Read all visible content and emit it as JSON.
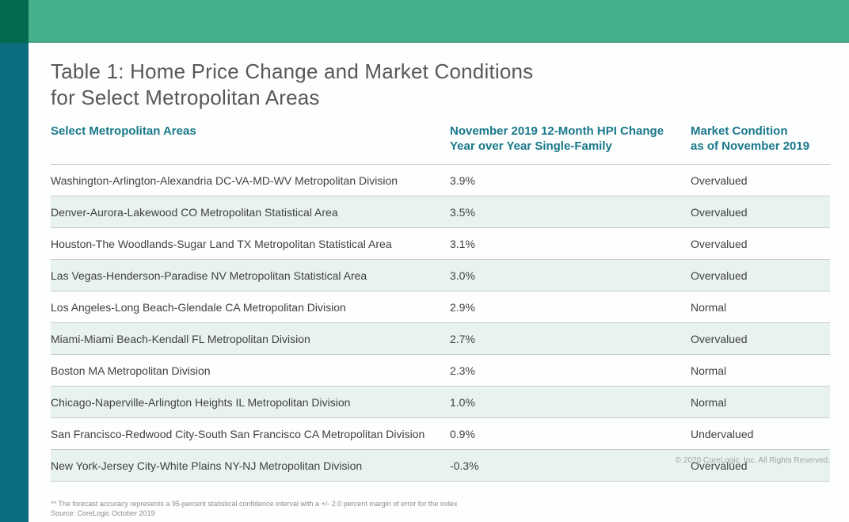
{
  "title": {
    "line1": "Table 1: Home Price Change and Market Conditions",
    "line2": "for Select Metropolitan Areas"
  },
  "table": {
    "columns": {
      "area": "Select Metropolitan Areas",
      "hpi_line1": "November 2019 12-Month HPI Change",
      "hpi_line2": "Year over Year Single-Family",
      "condition_line1": "Market Condition",
      "condition_line2": "as of November 2019"
    },
    "rows": [
      {
        "area": "Washington-Arlington-Alexandria DC-VA-MD-WV Metropolitan Division",
        "hpi_change": "3.9%",
        "condition": "Overvalued"
      },
      {
        "area": "Denver-Aurora-Lakewood CO Metropolitan Statistical Area",
        "hpi_change": "3.5%",
        "condition": "Overvalued"
      },
      {
        "area": "Houston-The Woodlands-Sugar Land TX Metropolitan Statistical Area",
        "hpi_change": "3.1%",
        "condition": "Overvalued"
      },
      {
        "area": "Las Vegas-Henderson-Paradise NV Metropolitan Statistical Area",
        "hpi_change": "3.0%",
        "condition": "Overvalued"
      },
      {
        "area": "Los Angeles-Long Beach-Glendale CA Metropolitan Division",
        "hpi_change": "2.9%",
        "condition": "Normal"
      },
      {
        "area": "Miami-Miami Beach-Kendall FL Metropolitan Division",
        "hpi_change": "2.7%",
        "condition": "Overvalued"
      },
      {
        "area": "Boston MA Metropolitan Division",
        "hpi_change": "2.3%",
        "condition": "Normal"
      },
      {
        "area": "Chicago-Naperville-Arlington Heights IL Metropolitan Division",
        "hpi_change": "1.0%",
        "condition": "Normal"
      },
      {
        "area": "San Francisco-Redwood City-South San Francisco CA Metropolitan Division",
        "hpi_change": "0.9%",
        "condition": "Undervalued"
      },
      {
        "area": "New York-Jersey City-White Plains NY-NJ Metropolitan Division",
        "hpi_change": "-0.3%",
        "condition": "Overvalued"
      }
    ]
  },
  "footer": {
    "footnote": "** The forecast accuracy represents a 95-percent statistical confidence interval with a +/- 2.0 percent margin of error for the index",
    "source": "Source: CoreLogic October 2019",
    "copyright": "© 2020 CoreLogic, Inc. All Rights Reserved."
  },
  "colors": {
    "banner_green": "#46b08e",
    "corner_dark_green": "#04694f",
    "rail_teal": "#0b6d7e",
    "header_text_teal": "#19788b",
    "row_alt_mint": "#e9f3ee",
    "title_gray": "#57585a",
    "body_gray": "#414042"
  }
}
